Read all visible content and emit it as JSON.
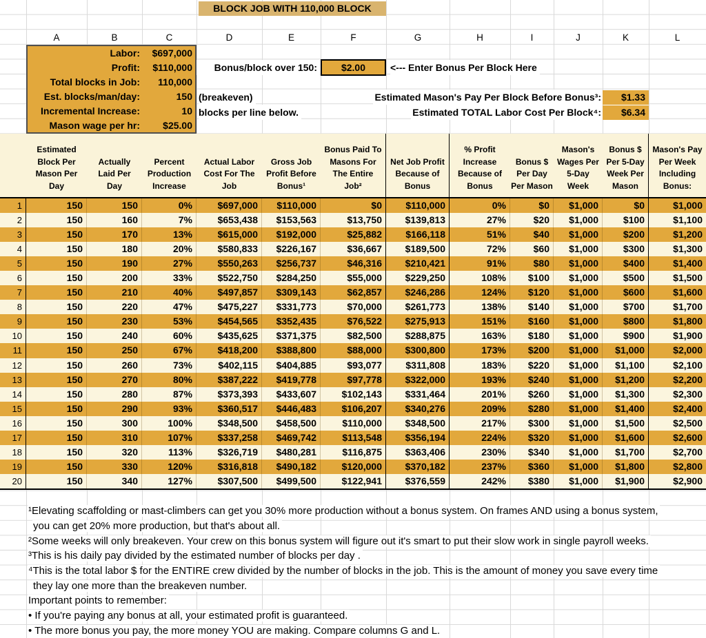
{
  "title": "BLOCK JOB WITH 110,000 BLOCK",
  "column_letters": [
    "A",
    "B",
    "C",
    "D",
    "E",
    "F",
    "G",
    "H",
    "I",
    "J",
    "K",
    "L"
  ],
  "colors": {
    "gold": "#e2a83c",
    "cream": "#fbf5de",
    "header_cream": "#faf3d9",
    "title_tan": "#d9b46e"
  },
  "params": [
    {
      "label": "Labor:",
      "value": "$697,000"
    },
    {
      "label": "Profit:",
      "value": "$110,000"
    },
    {
      "label": "Total blocks in Job:",
      "value": "110,000"
    },
    {
      "label": "Est. blocks/man/day:",
      "value": "150"
    },
    {
      "label": "Incremental Increase:",
      "value": "10"
    },
    {
      "label": "Mason wage per hr:",
      "value": "$25.00"
    }
  ],
  "bonus_input": {
    "label": "Bonus/block over 150:",
    "value": "$2.00",
    "hint": "<--- Enter Bonus Per Block Here"
  },
  "side_notes": {
    "breakeven": "(breakeven)",
    "blocks_per_line": "blocks per line below."
  },
  "estimates": [
    {
      "label": "Estimated Mason's Pay Per Block Before Bonus³:",
      "value": "$1.33"
    },
    {
      "label": "Estimated TOTAL Labor Cost Per Block⁴:",
      "value": "$6.34"
    }
  ],
  "table": {
    "headers": [
      "Estimated\nBlock Per\nMason Per\nDay",
      "Actually\nLaid Per\nDay",
      "Percent\nProduction\nIncrease",
      "Actual Labor\nCost For The\nJob",
      "Gross Job\nProfit Before\nBonus¹",
      "Bonus Paid To\nMasons For\nThe Entire\nJob²",
      "Net Job Profit\nBecause of\nBonus",
      "% Profit\nIncrease\nBecause of\nBonus",
      "Bonus $\nPer Day\nPer Mason",
      "Mason's\nWages Per\n5-Day\nWeek",
      "Bonus $\nPer 5-Day\nWeek Per\nMason",
      "Mason's Pay\nPer Week\nIncluding\nBonus:"
    ],
    "rows": [
      [
        "1",
        "150",
        "150",
        "0%",
        "$697,000",
        "$110,000",
        "$0",
        "$110,000",
        "0%",
        "$0",
        "$1,000",
        "$0",
        "$1,000"
      ],
      [
        "2",
        "150",
        "160",
        "7%",
        "$653,438",
        "$153,563",
        "$13,750",
        "$139,813",
        "27%",
        "$20",
        "$1,000",
        "$100",
        "$1,100"
      ],
      [
        "3",
        "150",
        "170",
        "13%",
        "$615,000",
        "$192,000",
        "$25,882",
        "$166,118",
        "51%",
        "$40",
        "$1,000",
        "$200",
        "$1,200"
      ],
      [
        "4",
        "150",
        "180",
        "20%",
        "$580,833",
        "$226,167",
        "$36,667",
        "$189,500",
        "72%",
        "$60",
        "$1,000",
        "$300",
        "$1,300"
      ],
      [
        "5",
        "150",
        "190",
        "27%",
        "$550,263",
        "$256,737",
        "$46,316",
        "$210,421",
        "91%",
        "$80",
        "$1,000",
        "$400",
        "$1,400"
      ],
      [
        "6",
        "150",
        "200",
        "33%",
        "$522,750",
        "$284,250",
        "$55,000",
        "$229,250",
        "108%",
        "$100",
        "$1,000",
        "$500",
        "$1,500"
      ],
      [
        "7",
        "150",
        "210",
        "40%",
        "$497,857",
        "$309,143",
        "$62,857",
        "$246,286",
        "124%",
        "$120",
        "$1,000",
        "$600",
        "$1,600"
      ],
      [
        "8",
        "150",
        "220",
        "47%",
        "$475,227",
        "$331,773",
        "$70,000",
        "$261,773",
        "138%",
        "$140",
        "$1,000",
        "$700",
        "$1,700"
      ],
      [
        "9",
        "150",
        "230",
        "53%",
        "$454,565",
        "$352,435",
        "$76,522",
        "$275,913",
        "151%",
        "$160",
        "$1,000",
        "$800",
        "$1,800"
      ],
      [
        "10",
        "150",
        "240",
        "60%",
        "$435,625",
        "$371,375",
        "$82,500",
        "$288,875",
        "163%",
        "$180",
        "$1,000",
        "$900",
        "$1,900"
      ],
      [
        "11",
        "150",
        "250",
        "67%",
        "$418,200",
        "$388,800",
        "$88,000",
        "$300,800",
        "173%",
        "$200",
        "$1,000",
        "$1,000",
        "$2,000"
      ],
      [
        "12",
        "150",
        "260",
        "73%",
        "$402,115",
        "$404,885",
        "$93,077",
        "$311,808",
        "183%",
        "$220",
        "$1,000",
        "$1,100",
        "$2,100"
      ],
      [
        "13",
        "150",
        "270",
        "80%",
        "$387,222",
        "$419,778",
        "$97,778",
        "$322,000",
        "193%",
        "$240",
        "$1,000",
        "$1,200",
        "$2,200"
      ],
      [
        "14",
        "150",
        "280",
        "87%",
        "$373,393",
        "$433,607",
        "$102,143",
        "$331,464",
        "201%",
        "$260",
        "$1,000",
        "$1,300",
        "$2,300"
      ],
      [
        "15",
        "150",
        "290",
        "93%",
        "$360,517",
        "$446,483",
        "$106,207",
        "$340,276",
        "209%",
        "$280",
        "$1,000",
        "$1,400",
        "$2,400"
      ],
      [
        "16",
        "150",
        "300",
        "100%",
        "$348,500",
        "$458,500",
        "$110,000",
        "$348,500",
        "217%",
        "$300",
        "$1,000",
        "$1,500",
        "$2,500"
      ],
      [
        "17",
        "150",
        "310",
        "107%",
        "$337,258",
        "$469,742",
        "$113,548",
        "$356,194",
        "224%",
        "$320",
        "$1,000",
        "$1,600",
        "$2,600"
      ],
      [
        "18",
        "150",
        "320",
        "113%",
        "$326,719",
        "$480,281",
        "$116,875",
        "$363,406",
        "230%",
        "$340",
        "$1,000",
        "$1,700",
        "$2,700"
      ],
      [
        "19",
        "150",
        "330",
        "120%",
        "$316,818",
        "$490,182",
        "$120,000",
        "$370,182",
        "237%",
        "$360",
        "$1,000",
        "$1,800",
        "$2,800"
      ],
      [
        "20",
        "150",
        "340",
        "127%",
        "$307,500",
        "$499,500",
        "$122,941",
        "$376,559",
        "242%",
        "$380",
        "$1,000",
        "$1,900",
        "$2,900"
      ]
    ]
  },
  "footnotes": [
    "¹Elevating scaffolding or mast-climbers can get you 30% more production without a bonus system. On frames AND using a bonus system,",
    "you can get 20% more production, but that's about all.",
    "²Some weeks will only breakeven. Your crew on this bonus system will figure out it's smart to put their slow work in single payroll weeks.",
    "³This is his daily pay divided by the estimated number of blocks per day .",
    "⁴This is the total labor $ for the ENTIRE crew divided by the number of blocks in the job. This is the amount of money you save every time",
    "they lay one more than the breakeven number.",
    "Important points to remember:",
    "• If you're paying any bonus at all, your estimated profit is guaranteed.",
    "• The more bonus you pay, the more money YOU are making. Compare columns G and L."
  ]
}
